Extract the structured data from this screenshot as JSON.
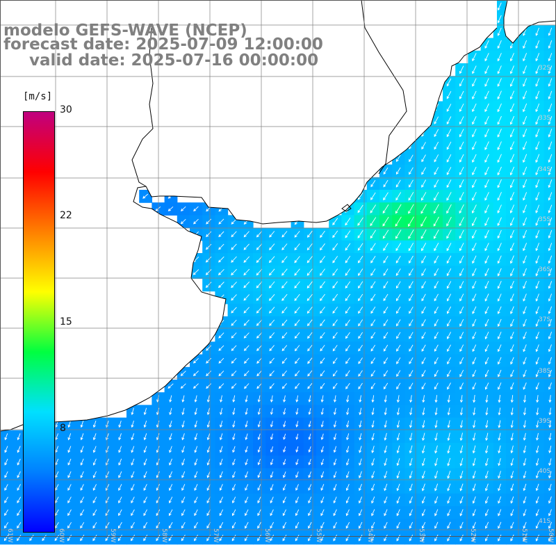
{
  "header": {
    "line1": "modelo GEFS-WAVE (NCEP)",
    "line2": "forecast date: 2025-07-09 12:00:00",
    "line3": "valid date: 2025-07-16 00:00:00"
  },
  "colorbar": {
    "unit": "[m/s]",
    "ticks": [
      "30",
      "22",
      "15",
      "8"
    ],
    "stops": [
      "#0000ff",
      "#0080ff",
      "#00e0ff",
      "#00ff40",
      "#ffff00",
      "#ff8000",
      "#ff0000",
      "#c00080"
    ]
  },
  "axes": {
    "lon_labels": [
      "61W",
      "60W",
      "59W",
      "58W",
      "57W",
      "56W",
      "55W",
      "54W",
      "53W",
      "52W",
      "51W",
      "50W"
    ],
    "lat_labels": [
      "32S",
      "33S",
      "34S",
      "35S",
      "36S",
      "37S",
      "38S",
      "39S",
      "40S",
      "41S"
    ]
  },
  "colors": {
    "land": "#ffffff",
    "coast": "#000000",
    "grid": "#808080",
    "arrow": "#ffffff"
  }
}
